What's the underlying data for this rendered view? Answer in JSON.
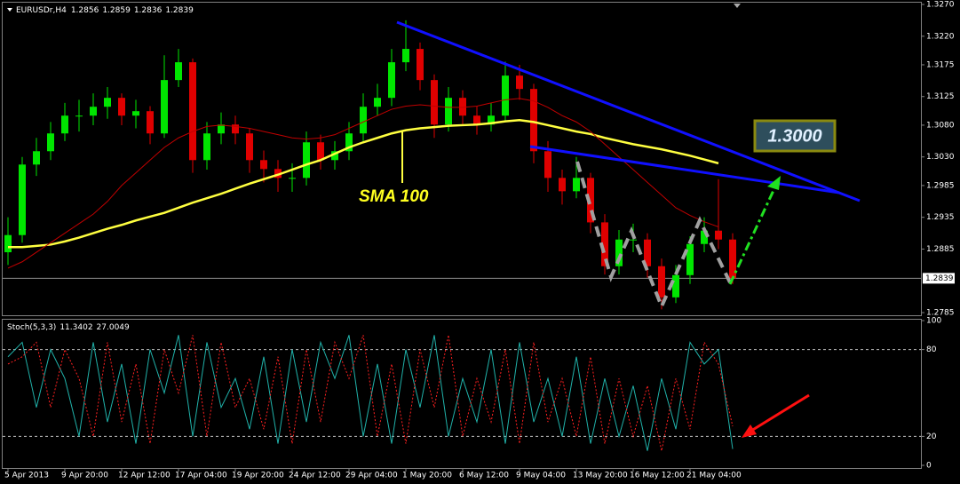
{
  "chart_data": [
    {
      "type": "candlestick",
      "title": "EURUSDr,H4",
      "header_ohlc": [
        1.2856,
        1.2859,
        1.2836,
        1.2839
      ],
      "categories": [
        "5 Apr 2013",
        null,
        null,
        null,
        "9 Apr 20:00",
        null,
        null,
        null,
        "12 Apr 12:00",
        null,
        null,
        null,
        "17 Apr 04:00",
        null,
        null,
        null,
        "19 Apr 20:00",
        null,
        null,
        null,
        "24 Apr 12:00",
        null,
        null,
        null,
        "29 Apr 04:00",
        null,
        null,
        null,
        "1 May 20:00",
        null,
        null,
        null,
        "6 May 12:00",
        null,
        null,
        null,
        "9 May 04:00",
        null,
        null,
        null,
        "13 May 20:00",
        null,
        null,
        null,
        "16 May 12:00",
        null,
        null,
        null,
        "21 May 04:00",
        null,
        null,
        null
      ],
      "open": [
        1.288,
        1.2907,
        1.3018,
        1.3039,
        1.3067,
        1.3095,
        1.3095,
        1.3109,
        1.3123,
        1.3095,
        1.3102,
        1.3067,
        1.3151,
        1.3179,
        1.3025,
        1.3067,
        1.3081,
        1.3067,
        1.3025,
        1.3011,
        1.2997,
        1.2997,
        1.3053,
        1.3025,
        1.3039,
        1.3067,
        1.3109,
        1.3123,
        1.3179,
        1.32,
        1.3151,
        1.3081,
        1.3123,
        1.3095,
        1.3081,
        1.3095,
        1.3158,
        1.3137,
        1.3039,
        1.2997,
        1.2976,
        1.2997,
        1.2927,
        1.2858,
        1.29,
        1.29,
        1.2858,
        1.2809,
        1.2844,
        1.2893,
        1.2914,
        1.29
      ],
      "high": [
        1.2935,
        1.303,
        1.306,
        1.3085,
        1.3115,
        1.312,
        1.313,
        1.314,
        1.313,
        1.312,
        1.311,
        1.319,
        1.32,
        1.3185,
        1.3085,
        1.31,
        1.3095,
        1.3075,
        1.304,
        1.3025,
        1.302,
        1.307,
        1.3065,
        1.3055,
        1.3085,
        1.313,
        1.3145,
        1.32,
        1.3245,
        1.321,
        1.316,
        1.314,
        1.3135,
        1.311,
        1.3115,
        1.318,
        1.3175,
        1.3145,
        1.3055,
        1.301,
        1.303,
        1.3005,
        1.294,
        1.2915,
        1.2925,
        1.291,
        1.287,
        1.286,
        1.2905,
        1.2935,
        1.2995,
        1.291
      ],
      "low": [
        1.286,
        1.2895,
        1.3,
        1.3025,
        1.3055,
        1.307,
        1.308,
        1.309,
        1.308,
        1.3075,
        1.305,
        1.306,
        1.314,
        1.3005,
        1.301,
        1.305,
        1.305,
        1.3005,
        1.299,
        1.2975,
        1.2975,
        1.2985,
        1.301,
        1.301,
        1.3025,
        1.3055,
        1.3095,
        1.311,
        1.3165,
        1.3135,
        1.306,
        1.307,
        1.308,
        1.3065,
        1.307,
        1.3085,
        1.312,
        1.302,
        1.2975,
        1.2955,
        1.2965,
        1.291,
        1.2845,
        1.2845,
        1.288,
        1.284,
        1.279,
        1.28,
        1.283,
        1.288,
        1.2885,
        1.283
      ],
      "close": [
        1.2907,
        1.3018,
        1.3039,
        1.3067,
        1.3095,
        1.3095,
        1.3109,
        1.3123,
        1.3095,
        1.3102,
        1.3067,
        1.3151,
        1.3179,
        1.3025,
        1.3067,
        1.3081,
        1.3067,
        1.3025,
        1.3011,
        1.2997,
        1.2997,
        1.3053,
        1.3025,
        1.3039,
        1.3067,
        1.3109,
        1.3123,
        1.3179,
        1.32,
        1.3151,
        1.3081,
        1.3123,
        1.3095,
        1.3081,
        1.3095,
        1.3158,
        1.3137,
        1.3039,
        1.2997,
        1.2976,
        1.2997,
        1.2927,
        1.2858,
        1.29,
        1.29,
        1.2858,
        1.2809,
        1.2844,
        1.2893,
        1.2914,
        1.29,
        1.2839
      ],
      "up_color": "#00e600",
      "down_color": "#e00000",
      "overlays": [
        {
          "color": "#ffff40",
          "values": [
            1.2888,
            1.2888,
            1.289,
            1.2892,
            1.2897,
            1.2903,
            1.291,
            1.2917,
            1.2923,
            1.293,
            1.2936,
            1.2942,
            1.295,
            1.2958,
            1.2965,
            1.2972,
            1.298,
            1.2988,
            1.2995,
            1.3002,
            1.301,
            1.3018,
            1.3025,
            1.3035,
            1.3045,
            1.3053,
            1.306,
            1.3067,
            1.3072,
            1.3075,
            1.3077,
            1.3079,
            1.308,
            1.3081,
            1.3083,
            1.3086,
            1.3088,
            1.3085,
            1.308,
            1.3075,
            1.307,
            1.3066,
            1.306,
            1.3055,
            1.305,
            1.3046,
            1.3042,
            1.3037,
            1.3032,
            1.3026,
            1.302,
            null
          ]
        },
        {
          "color": "#c00000",
          "values": [
            1.2855,
            1.2865,
            1.288,
            1.2895,
            1.291,
            1.2925,
            1.294,
            1.296,
            1.2985,
            1.3005,
            1.3025,
            1.3045,
            1.306,
            1.307,
            1.3078,
            1.308,
            1.3078,
            1.3075,
            1.307,
            1.3065,
            1.306,
            1.3058,
            1.306,
            1.3065,
            1.3075,
            1.3085,
            1.3095,
            1.3105,
            1.311,
            1.3112,
            1.311,
            1.3108,
            1.3108,
            1.311,
            1.3115,
            1.312,
            1.3122,
            1.3118,
            1.3108,
            1.3095,
            1.3085,
            1.307,
            1.305,
            1.303,
            1.301,
            1.299,
            1.297,
            1.295,
            1.2938,
            1.2928,
            1.292,
            null
          ]
        }
      ],
      "current_price": 1.2839,
      "ylim": [
        1.2785,
        1.327
      ],
      "yticks": [
        {
          "value": 1.327,
          "label": "1.3270"
        },
        {
          "value": 1.322,
          "label": "1.3220"
        },
        1.3175,
        1.3125,
        {
          "value": 1.308,
          "label": "1.3080"
        },
        {
          "value": 1.303,
          "label": "1.3030"
        },
        1.2985,
        1.2935,
        1.2885,
        1.2785
      ],
      "grid": false,
      "annotations": [
        "SMA 100",
        "1.3000"
      ]
    },
    {
      "type": "line",
      "title": "Stoch(5,3,3)",
      "ylim": [
        0,
        100
      ],
      "yticks": [
        100,
        80,
        20,
        0
      ],
      "levels": [
        80,
        20
      ],
      "series": [
        {
          "color": "#20b2aa",
          "dash": false,
          "values": [
            75,
            85,
            40,
            80,
            60,
            20,
            85,
            30,
            70,
            15,
            80,
            50,
            90,
            20,
            85,
            40,
            60,
            25,
            75,
            15,
            80,
            30,
            85,
            60,
            90,
            20,
            70,
            15,
            80,
            40,
            90,
            20,
            60,
            30,
            80,
            15,
            85,
            30,
            60,
            20,
            75,
            15,
            60,
            20,
            55,
            10,
            60,
            25,
            85,
            70,
            80,
            11.3402
          ]
        },
        {
          "color": "#ff2020",
          "dash": true,
          "values": [
            70,
            75,
            85,
            40,
            80,
            60,
            20,
            85,
            30,
            70,
            15,
            80,
            50,
            90,
            20,
            85,
            40,
            60,
            25,
            75,
            15,
            80,
            30,
            85,
            60,
            90,
            20,
            70,
            15,
            80,
            40,
            90,
            20,
            60,
            30,
            80,
            15,
            85,
            30,
            60,
            20,
            75,
            15,
            60,
            20,
            55,
            10,
            60,
            25,
            85,
            70,
            27.0049
          ]
        }
      ]
    }
  ]
}
